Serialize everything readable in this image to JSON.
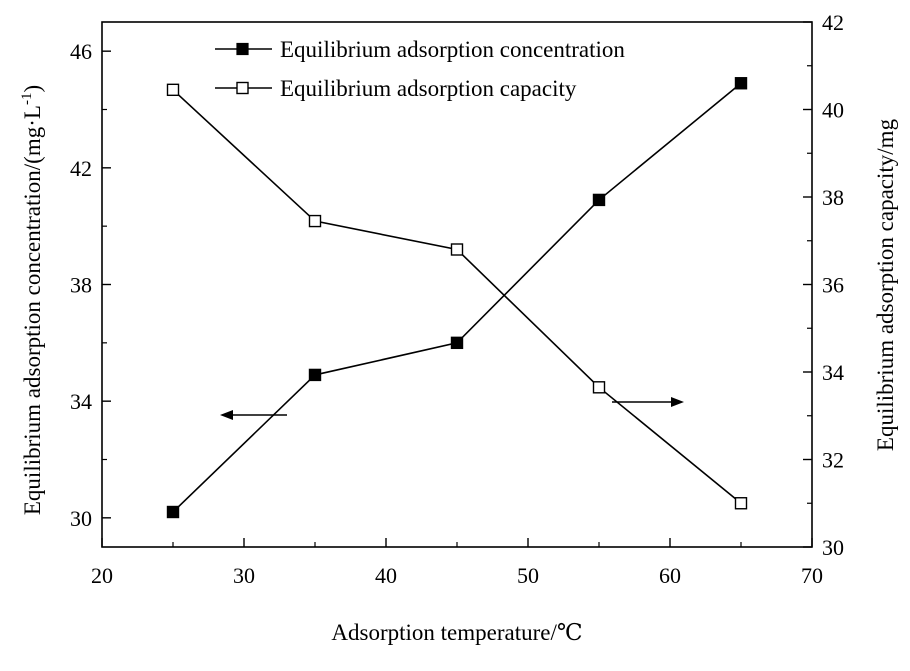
{
  "chart_data": {
    "type": "line",
    "xlabel": "Adsorption temperature/℃",
    "ylabel_left": "Equilibrium adsorption concentration/(mg·L",
    "ylabel_left_superscript": "-1",
    "ylabel_left_suffix": ")",
    "ylabel_right": "Equilibrium adsorption capacity/mg",
    "xlim": [
      20,
      70
    ],
    "ylim_left": [
      29,
      47
    ],
    "ylim_right": [
      30,
      42
    ],
    "x_ticks": [
      "20",
      "30",
      "40",
      "50",
      "60",
      "70"
    ],
    "y_left_ticks": [
      "30",
      "34",
      "38",
      "42",
      "46"
    ],
    "y_right_ticks": [
      "30",
      "32",
      "34",
      "36",
      "38",
      "40",
      "42"
    ],
    "x": [
      25,
      35,
      45,
      55,
      65
    ],
    "series": [
      {
        "name": "Equilibrium adsorption concentration",
        "axis": "left",
        "marker": "filled-square",
        "values": [
          30.2,
          34.9,
          36.0,
          40.9,
          44.9
        ]
      },
      {
        "name": "Equilibrium adsorption capacity",
        "axis": "right",
        "marker": "open-square",
        "values": [
          40.45,
          37.45,
          36.8,
          33.65,
          31.0
        ]
      }
    ],
    "legend_position": "top-center",
    "grid": false,
    "annotations": [
      "arrow-left pointing to left axis",
      "arrow-right pointing to right axis"
    ],
    "colors": {
      "line": "#000000",
      "background": "#ffffff"
    }
  }
}
